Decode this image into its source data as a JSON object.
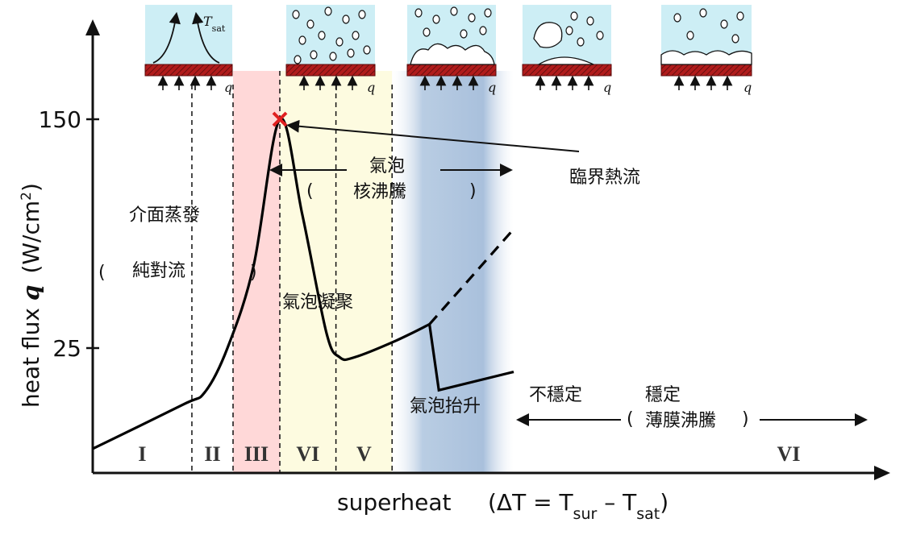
{
  "chart_data": {
    "type": "line",
    "title": "",
    "xlabel": {
      "main": "superheat",
      "formula_prefix": "(ΔT = T",
      "sub1": "sur",
      "mid": " – T",
      "sub2": "sat",
      "formula_suffix": ")"
    },
    "ylabel": {
      "main": "heat flux ",
      "symbol": "q",
      "unit_prefix": "(W/cm",
      "unit_sup": "2",
      "unit_suffix": ")"
    },
    "y_ticks": [
      {
        "label": "150",
        "value": 150
      },
      {
        "label": "25",
        "value": 25
      }
    ],
    "curve": [
      [
        0.0,
        -30
      ],
      [
        0.48,
        -6
      ],
      [
        0.6,
        1
      ],
      [
        0.72,
        25
      ],
      [
        0.86,
        70
      ],
      [
        1.0,
        150
      ],
      [
        1.12,
        98
      ],
      [
        1.25,
        33
      ],
      [
        1.32,
        20
      ],
      [
        1.4,
        20
      ],
      [
        1.62,
        29
      ],
      [
        1.8,
        38
      ]
    ],
    "curve_stable": [
      [
        1.8,
        38
      ],
      [
        1.85,
        2
      ],
      [
        2.25,
        12
      ]
    ],
    "curve_dashed": [
      [
        1.8,
        38
      ],
      [
        2.25,
        90
      ]
    ],
    "critical_point": {
      "x": 1.0,
      "y": 150,
      "label": "臨界熱流"
    },
    "regions": [
      {
        "numeral": "I",
        "x0": 0.0,
        "x1": 0.53,
        "color": null
      },
      {
        "numeral": "II",
        "x0": 0.53,
        "x1": 0.75,
        "color": null
      },
      {
        "numeral": "III",
        "x0": 0.75,
        "x1": 1.0,
        "color": "#ffd8d8"
      },
      {
        "numeral": "VI",
        "x0": 1.0,
        "x1": 1.3,
        "color": "#fdfbe0"
      },
      {
        "numeral": "V",
        "x0": 1.3,
        "x1": 1.6,
        "color": "#fdfbe0"
      },
      {
        "numeral": "VI",
        "x0": 1.6,
        "x1": 2.25,
        "color": "#a9c0dc"
      }
    ],
    "annotations": {
      "interface_evap": "介面蒸發",
      "paren_open": "(",
      "paren_close": ")",
      "pure_convection": "純對流",
      "nucleate_line1": "氣泡",
      "nucleate_line2": "核沸騰",
      "bubble_coalesce": "氣泡凝聚",
      "bubble_lift": "氣泡抬升",
      "unstable": "不穩定",
      "stable": "穩定",
      "film_boiling": "薄膜沸騰"
    },
    "insets": {
      "tsat_T": "T",
      "tsat_sub": "sat",
      "q_label": "q"
    },
    "colors": {
      "curve": "#000000",
      "critical_marker": "#e02020",
      "inset_fluid": "#cdeef5",
      "heater": "#b01c1c"
    }
  }
}
